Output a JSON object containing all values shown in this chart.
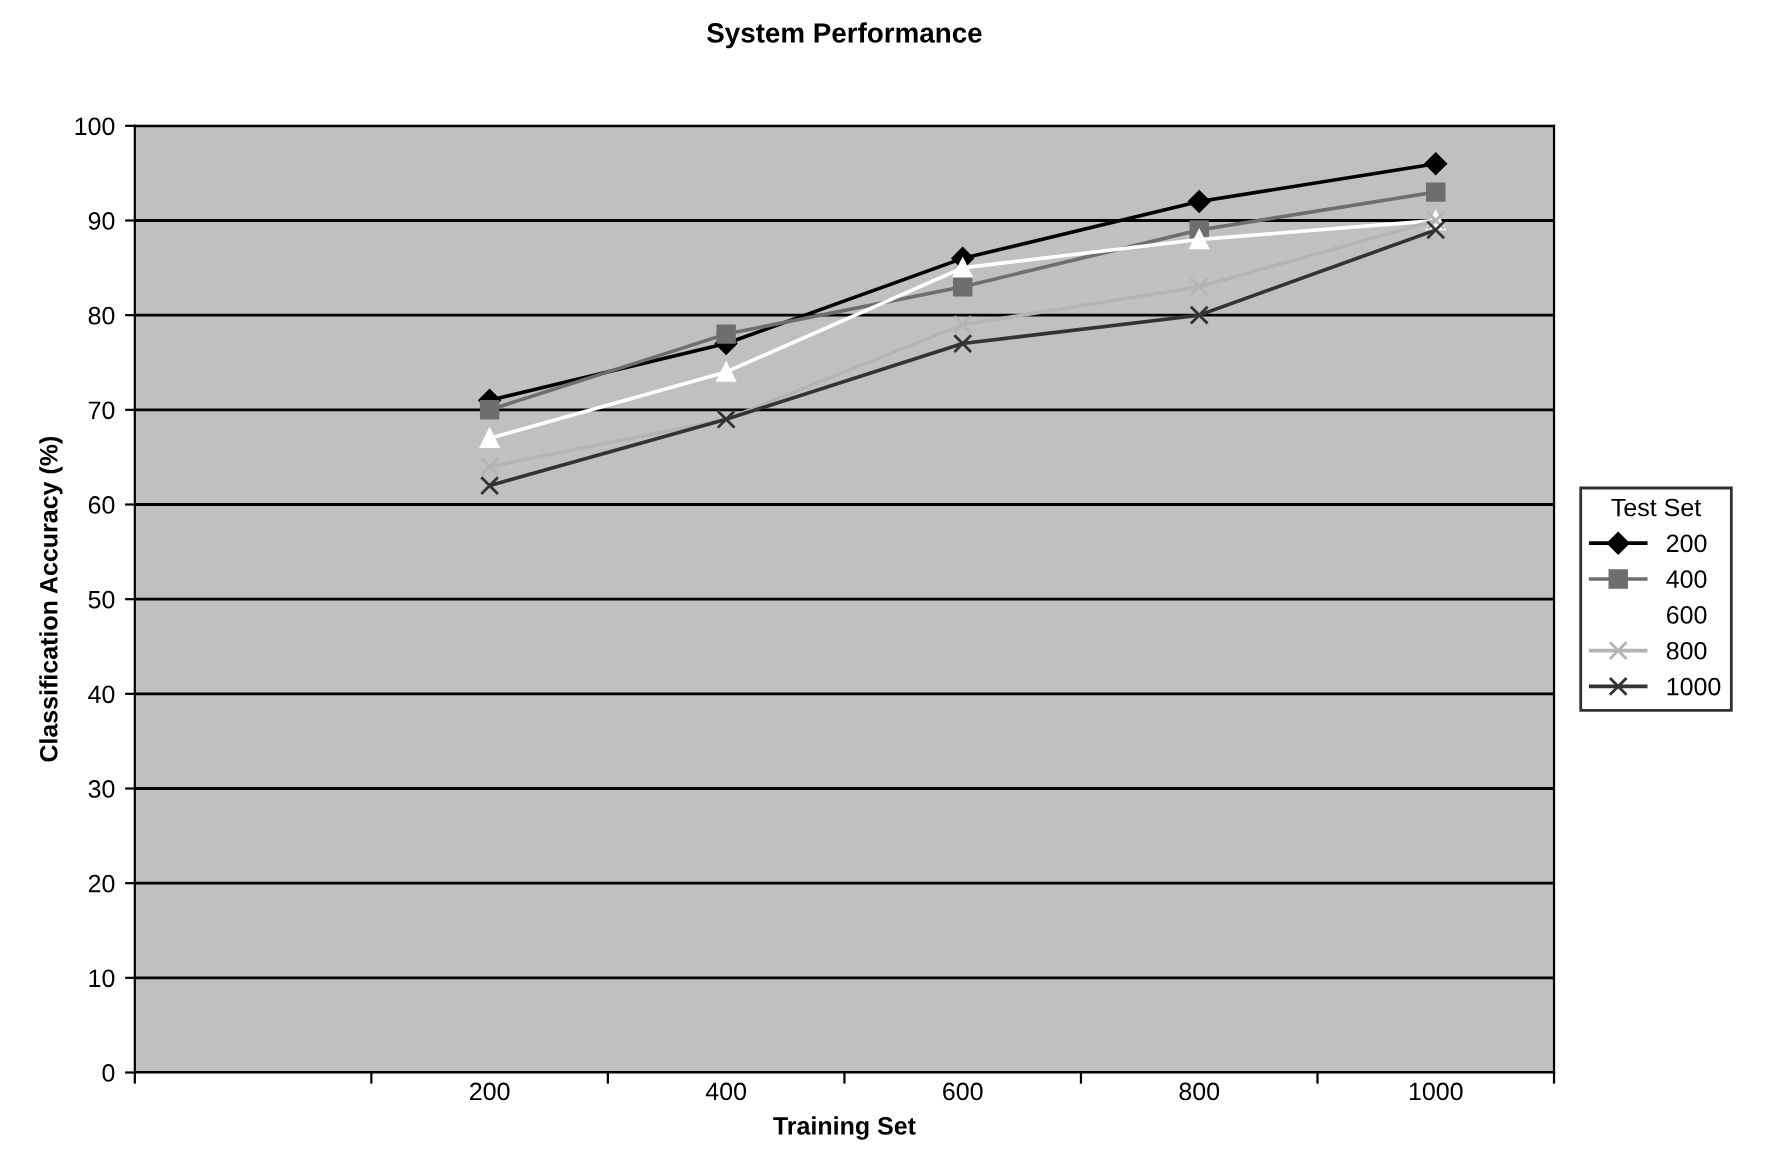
{
  "chart_data": {
    "type": "line",
    "title": "System Performance",
    "xlabel": "Training Set",
    "ylabel": "Classification Accuracy (%)",
    "legend_title": "Test Set",
    "categories": [
      null,
      "200",
      "400",
      "600",
      "800",
      "1000"
    ],
    "series": [
      {
        "name": "200",
        "color": "#000000",
        "marker": "diamond",
        "values": [
          null,
          71,
          77,
          86,
          92,
          96
        ]
      },
      {
        "name": "400",
        "color": "#6e6e6e",
        "marker": "square",
        "values": [
          null,
          70,
          78,
          83,
          89,
          93
        ]
      },
      {
        "name": "600",
        "color": "#ffffff",
        "marker": "triangle",
        "values": [
          null,
          67,
          74,
          85,
          88,
          90
        ]
      },
      {
        "name": "800",
        "color": "#b4b4b4",
        "marker": "cross",
        "values": [
          null,
          64,
          69,
          79,
          83,
          90
        ]
      },
      {
        "name": "1000",
        "color": "#333333",
        "marker": "cross",
        "values": [
          null,
          62,
          69,
          77,
          80,
          89
        ]
      }
    ],
    "ylim": [
      0,
      100
    ],
    "yticks": [
      0,
      10,
      20,
      30,
      40,
      50,
      60,
      70,
      80,
      90,
      100
    ],
    "grid": "y",
    "legend": "right",
    "line_style": "solid"
  }
}
